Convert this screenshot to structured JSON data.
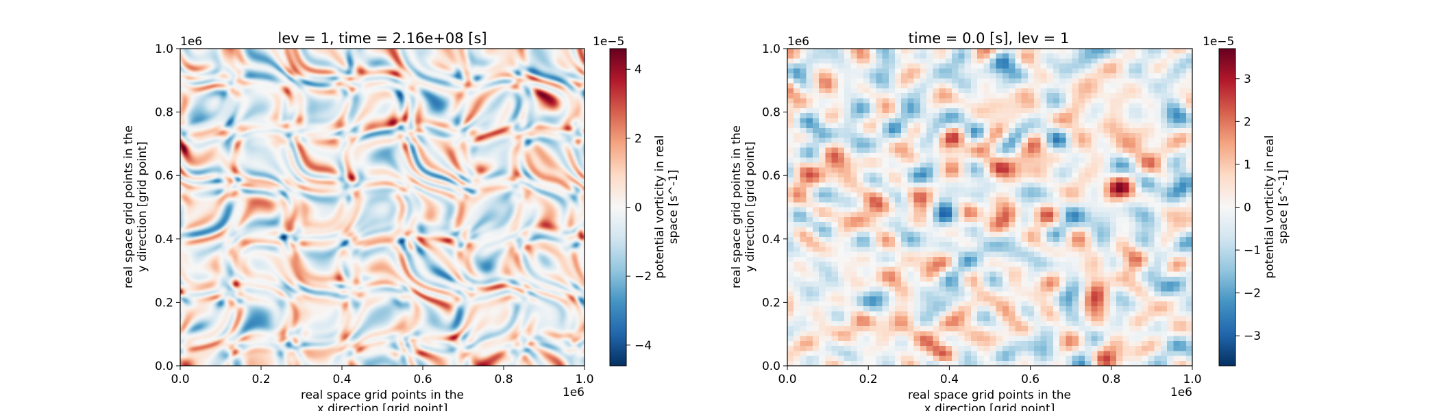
{
  "chart_data": [
    {
      "type": "heatmap",
      "title": "lev = 1, time = 2.16e+08 [s]",
      "xlabel": [
        "real space grid points in the",
        "x direction [grid point]"
      ],
      "ylabel": [
        "real space grid points in the",
        "y direction [grid point]"
      ],
      "xlim": [
        0.0,
        1.0
      ],
      "ylim": [
        0.0,
        1.0
      ],
      "xticks": [
        "0.0",
        "0.2",
        "0.4",
        "0.6",
        "0.8",
        "1.0"
      ],
      "yticks": [
        "0.0",
        "0.2",
        "0.4",
        "0.6",
        "0.8",
        "1.0"
      ],
      "x_offset": "1e6",
      "y_offset": "1e6",
      "colormap": "RdBu_r",
      "colorbar": {
        "label": [
          "potential vorticity in real",
          "space [s^-1]"
        ],
        "offset": "1e−5",
        "range": [
          -4.6,
          4.6
        ],
        "ticks": [
          -4,
          -2,
          0,
          2,
          4
        ],
        "tick_labels": [
          "−4",
          "−2",
          "0",
          "2",
          "4"
        ]
      },
      "field_resolution": "fine (~256 grid points)"
    },
    {
      "type": "heatmap",
      "title": "time = 0.0 [s], lev = 1",
      "xlabel": [
        "real space grid points in the",
        "x direction [grid point]"
      ],
      "ylabel": [
        "real space grid points in the",
        "y direction [grid point]"
      ],
      "xlim": [
        0.0,
        1.0
      ],
      "ylim": [
        0.0,
        1.0
      ],
      "xticks": [
        "0.0",
        "0.2",
        "0.4",
        "0.6",
        "0.8",
        "1.0"
      ],
      "yticks": [
        "0.0",
        "0.2",
        "0.4",
        "0.6",
        "0.8",
        "1.0"
      ],
      "x_offset": "1e6",
      "y_offset": "1e6",
      "colormap": "RdBu_r",
      "colorbar": {
        "label": [
          "potential vorticity in real",
          "space [s^-1]"
        ],
        "offset": "1e−5",
        "range": [
          -3.7,
          3.7
        ],
        "ticks": [
          -3,
          -2,
          -1,
          0,
          1,
          2,
          3
        ],
        "tick_labels": [
          "−3",
          "−2",
          "−1",
          "0",
          "1",
          "2",
          "3"
        ]
      },
      "field_resolution": "coarse (~64 grid points)"
    }
  ]
}
